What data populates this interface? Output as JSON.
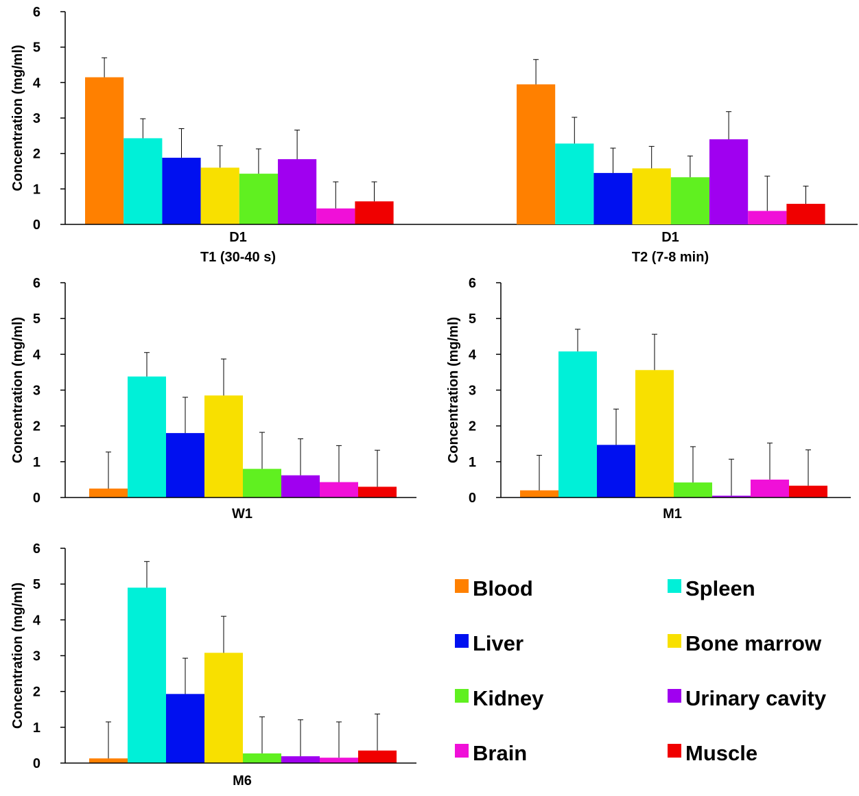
{
  "colors": {
    "Blood": "#ff8000",
    "Spleen": "#00f0d8",
    "Liver": "#0010f0",
    "Bone marrow": "#f8e000",
    "Kidney": "#60f020",
    "Urinary cavity": "#a000f0",
    "Brain": "#f010d8",
    "Muscle": "#f00000"
  },
  "legend": {
    "entries": [
      "Blood",
      "Spleen",
      "Liver",
      "Bone marrow",
      "Kidney",
      "Urinary cavity",
      "Brain",
      "Muscle"
    ]
  },
  "chart_data": [
    {
      "type": "bar",
      "categories": [
        "Blood",
        "Spleen",
        "Liver",
        "Bone marrow",
        "Kidney",
        "Urinary cavity",
        "Brain",
        "Muscle"
      ],
      "values": [
        4.15,
        2.43,
        1.88,
        1.6,
        1.43,
        1.84,
        0.45,
        0.65
      ],
      "errors": [
        0.55,
        0.55,
        0.82,
        0.62,
        0.7,
        0.82,
        0.75,
        0.55
      ],
      "xlabel_lines": [
        "D1",
        "T1 (30-40 s)"
      ],
      "ylabel": "Concentration (mg/ml)",
      "ylim": [
        0,
        6
      ],
      "yticks": [
        "0",
        "1",
        "2",
        "3",
        "4",
        "5",
        "6"
      ]
    },
    {
      "type": "bar",
      "categories": [
        "Blood",
        "Spleen",
        "Liver",
        "Bone marrow",
        "Kidney",
        "Urinary cavity",
        "Brain",
        "Muscle"
      ],
      "values": [
        3.95,
        2.28,
        1.45,
        1.58,
        1.33,
        2.4,
        0.38,
        0.58
      ],
      "errors": [
        0.7,
        0.74,
        0.7,
        0.62,
        0.6,
        0.78,
        0.98,
        0.5
      ],
      "xlabel_lines": [
        "D1",
        "T2 (7-8 min)"
      ],
      "ylabel": "",
      "ylim": [
        0,
        6
      ],
      "yticks": []
    },
    {
      "type": "bar",
      "categories": [
        "Blood",
        "Spleen",
        "Liver",
        "Bone marrow",
        "Kidney",
        "Urinary cavity",
        "Brain",
        "Muscle"
      ],
      "values": [
        0.25,
        3.38,
        1.8,
        2.85,
        0.8,
        0.62,
        0.43,
        0.3
      ],
      "errors": [
        1.02,
        0.67,
        1.0,
        1.02,
        1.02,
        1.02,
        1.02,
        1.02
      ],
      "xlabel_lines": [
        "W1"
      ],
      "ylabel": "Concentration (mg/ml)",
      "ylim": [
        0,
        6
      ],
      "yticks": [
        "0",
        "1",
        "2",
        "3",
        "4",
        "5",
        "6"
      ]
    },
    {
      "type": "bar",
      "categories": [
        "Blood",
        "Spleen",
        "Liver",
        "Bone marrow",
        "Kidney",
        "Urinary cavity",
        "Brain",
        "Muscle"
      ],
      "values": [
        0.2,
        4.08,
        1.47,
        3.56,
        0.42,
        0.05,
        0.5,
        0.33
      ],
      "errors": [
        0.98,
        0.62,
        1.0,
        1.0,
        1.0,
        1.02,
        1.02,
        1.0
      ],
      "xlabel_lines": [
        "M1"
      ],
      "ylabel": "Concentration (mg/ml)",
      "ylim": [
        0,
        6
      ],
      "yticks": [
        "0",
        "1",
        "2",
        "3",
        "4",
        "5",
        "6"
      ]
    },
    {
      "type": "bar",
      "categories": [
        "Blood",
        "Spleen",
        "Liver",
        "Bone marrow",
        "Kidney",
        "Urinary cavity",
        "Brain",
        "Muscle"
      ],
      "values": [
        0.13,
        4.9,
        1.93,
        3.08,
        0.27,
        0.19,
        0.15,
        0.35
      ],
      "errors": [
        1.02,
        0.73,
        1.0,
        1.02,
        1.02,
        1.02,
        1.0,
        1.02
      ],
      "xlabel_lines": [
        "M6"
      ],
      "ylabel": "Concentration (mg/ml)",
      "ylim": [
        0,
        6
      ],
      "yticks": [
        "0",
        "1",
        "2",
        "3",
        "4",
        "5",
        "6"
      ]
    }
  ]
}
